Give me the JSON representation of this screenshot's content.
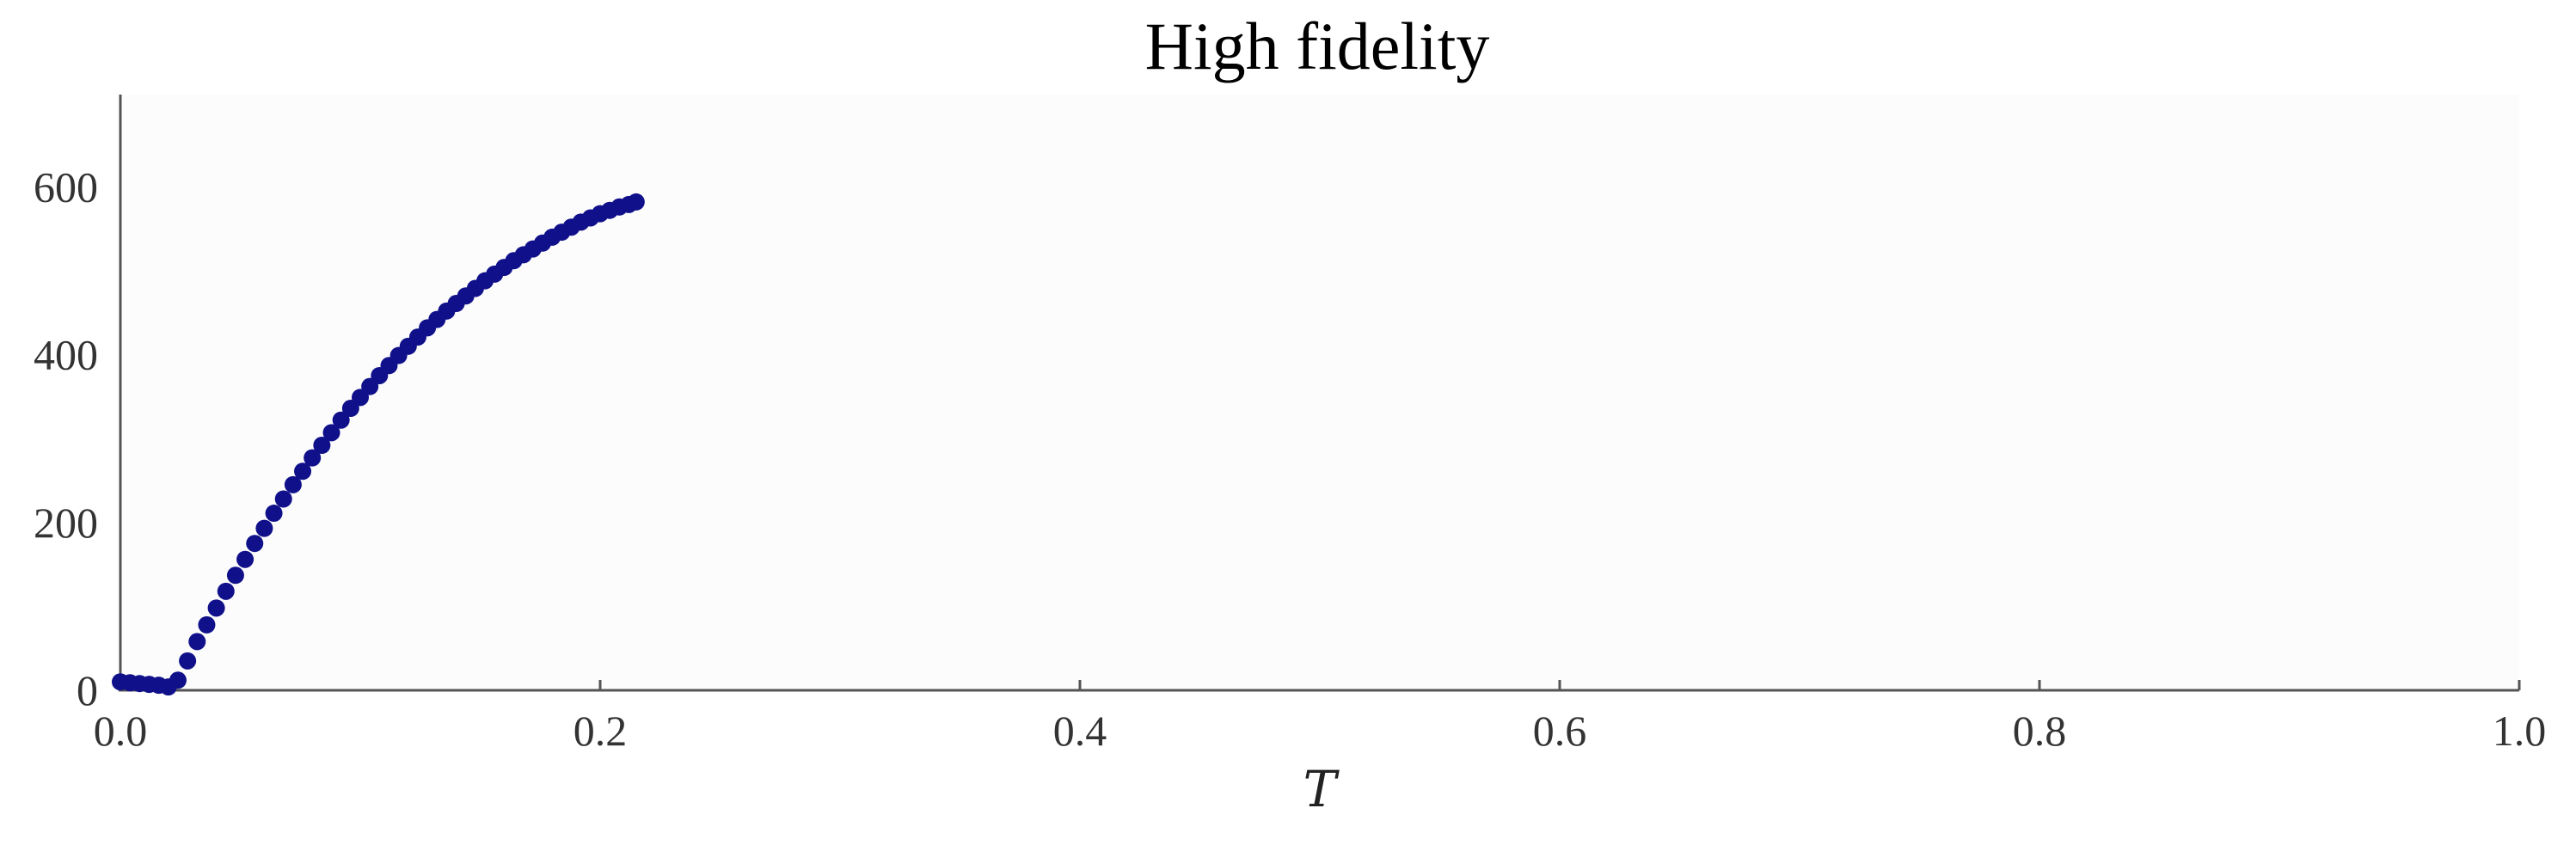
{
  "chart_data": {
    "type": "scatter",
    "title": "High fidelity",
    "xlabel": "T",
    "ylabel": "",
    "xlim": [
      0.0,
      1.0
    ],
    "ylim": [
      0,
      710
    ],
    "xticks": [
      0.0,
      0.2,
      0.4,
      0.6,
      0.8,
      1.0
    ],
    "xtick_labels": [
      "0.0",
      "0.2",
      "0.4",
      "0.6",
      "0.8",
      "1.0"
    ],
    "yticks": [
      0,
      200,
      400,
      600
    ],
    "ytick_labels": [
      "0",
      "200",
      "400",
      "600"
    ],
    "grid": false,
    "colors": {
      "marker": "#10108a",
      "axes": "#555555",
      "plot_background": "#fcfcfc"
    },
    "series": [
      {
        "x": [
          0.0,
          0.004,
          0.008,
          0.012,
          0.016,
          0.02,
          0.024,
          0.028,
          0.032,
          0.036,
          0.04,
          0.044,
          0.048,
          0.052,
          0.056,
          0.06,
          0.064,
          0.068,
          0.072,
          0.076,
          0.08,
          0.084,
          0.088,
          0.092,
          0.096,
          0.1,
          0.104,
          0.108,
          0.112,
          0.116,
          0.12,
          0.124,
          0.128,
          0.132,
          0.136,
          0.14,
          0.144,
          0.148,
          0.152,
          0.156,
          0.16,
          0.164,
          0.168,
          0.172,
          0.176,
          0.18,
          0.184,
          0.188,
          0.192,
          0.196,
          0.2,
          0.204,
          0.208,
          0.212,
          0.215
        ],
        "y": [
          10,
          9,
          8,
          7,
          6,
          4,
          12,
          35,
          58,
          78,
          98,
          118,
          137,
          156,
          175,
          193,
          211,
          228,
          245,
          261,
          277,
          292,
          307,
          322,
          336,
          349,
          362,
          375,
          387,
          399,
          410,
          421,
          432,
          442,
          452,
          461,
          470,
          479,
          488,
          496,
          504,
          512,
          519,
          526,
          533,
          540,
          546,
          552,
          558,
          563,
          568,
          572,
          576,
          579,
          582
        ]
      }
    ]
  }
}
